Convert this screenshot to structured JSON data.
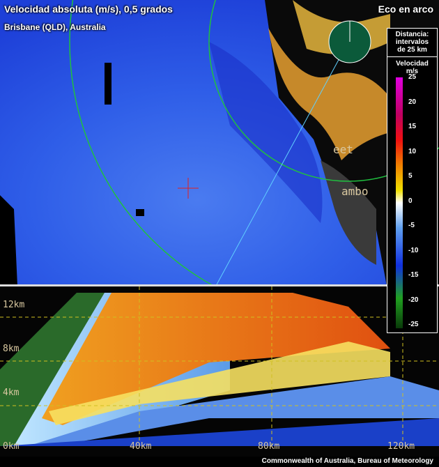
{
  "header": {
    "title": "Velocidad absoluta (m/s), 0,5 grados",
    "mode": "Eco en arco",
    "location": "Brisbane (QLD), Australia"
  },
  "legend": {
    "distance_title": "Distancia:",
    "distance_note": "intervalos de 25 km"
  },
  "colorbar": {
    "title": "Velocidad",
    "unit": "m/s",
    "ticks": [
      25,
      20,
      15,
      10,
      5,
      0,
      -5,
      -10,
      -15,
      -20,
      -25
    ]
  },
  "places": [
    "eet",
    "ambo"
  ],
  "section": {
    "height_labels": [
      "12km",
      "8km",
      "4km",
      "0km"
    ],
    "distance_labels": [
      "40km",
      "80km",
      "120km"
    ]
  },
  "footer": "Commonwealth of Australia, Bureau of Meteorology"
}
